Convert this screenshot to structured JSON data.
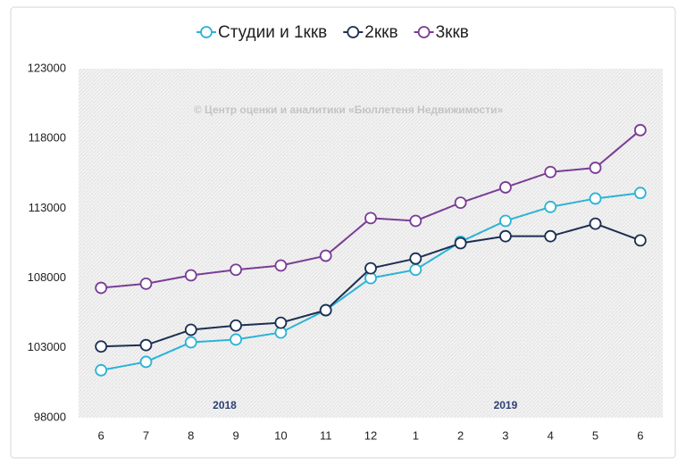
{
  "chart_data": {
    "type": "line",
    "watermark": "© Центр оценки и аналитики «Бюллетеня Недвижимости»",
    "year_labels": [
      "2018",
      "2019"
    ],
    "categories": [
      "6",
      "7",
      "8",
      "9",
      "10",
      "11",
      "12",
      "1",
      "2",
      "3",
      "4",
      "5",
      "6"
    ],
    "series": [
      {
        "name": "Студии и 1ккв",
        "color": "#2bb3d6",
        "values": [
          101400,
          102000,
          103400,
          103600,
          104100,
          105700,
          108000,
          108600,
          110600,
          112100,
          113100,
          113700,
          114100
        ]
      },
      {
        "name": "2ккв",
        "color": "#1c2f52",
        "values": [
          103100,
          103200,
          104300,
          104600,
          104800,
          105700,
          108700,
          109400,
          110500,
          111000,
          111000,
          111900,
          110700
        ]
      },
      {
        "name": "3ккв",
        "color": "#7a3d96",
        "values": [
          107300,
          107600,
          108200,
          108600,
          108900,
          109600,
          112300,
          112100,
          113400,
          114500,
          115600,
          115900,
          118600
        ]
      }
    ],
    "ylim": [
      98000,
      123000
    ],
    "yticks": [
      98000,
      103000,
      108000,
      113000,
      118000,
      123000
    ],
    "grid": false
  }
}
